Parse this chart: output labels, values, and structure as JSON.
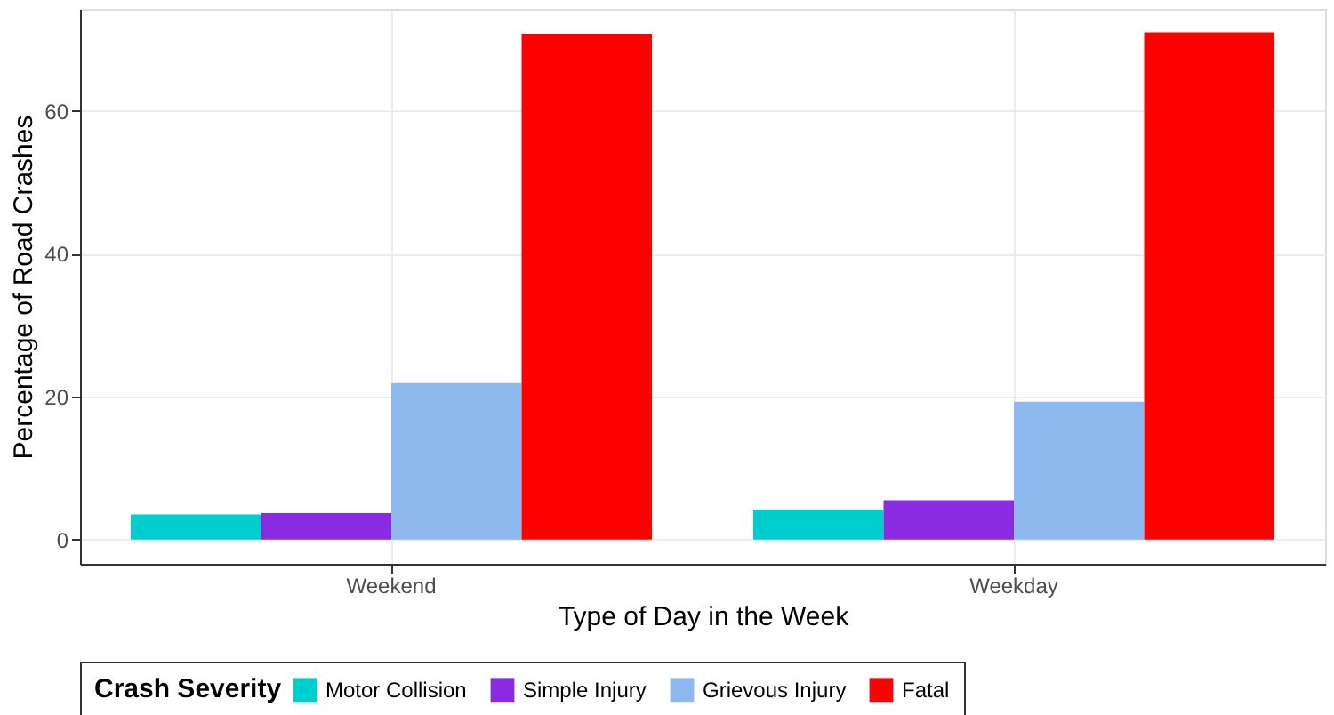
{
  "chart_data": {
    "type": "bar",
    "xlabel": "Type of Day in the Week",
    "ylabel": "Percentage of Road Crashes",
    "legend_title": "Crash Severity",
    "categories": [
      "Weekend",
      "Weekday"
    ],
    "series": [
      {
        "name": "Motor Collision",
        "color": "#00cdcd",
        "values": [
          3.5,
          4.2
        ]
      },
      {
        "name": "Simple Injury",
        "color": "#8a2be2",
        "values": [
          3.7,
          5.5
        ]
      },
      {
        "name": "Grievous Injury",
        "color": "#8db9ee",
        "values": [
          21.9,
          19.3
        ]
      },
      {
        "name": "Fatal",
        "color": "#ff0000",
        "values": [
          70.8,
          71.0
        ]
      }
    ],
    "ylim": [
      -3.4,
      74.3
    ],
    "yticks": [
      0,
      20,
      40,
      60
    ],
    "grid": true,
    "legend": "bottom"
  }
}
